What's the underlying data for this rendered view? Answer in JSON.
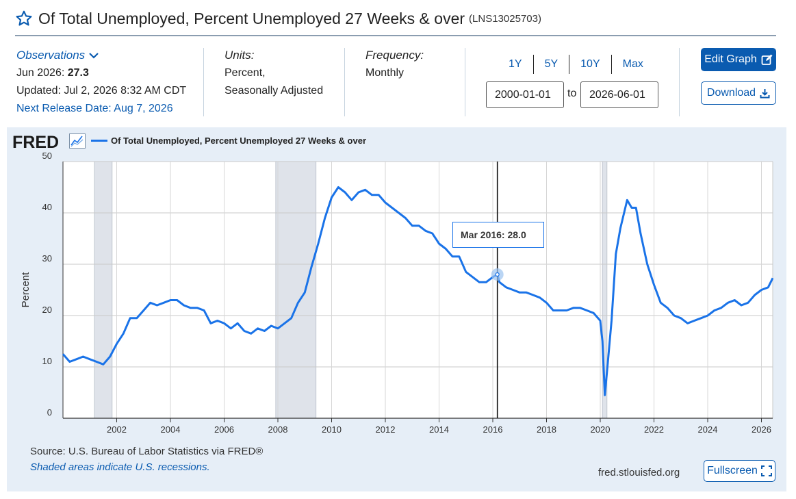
{
  "header": {
    "title": "Of Total Unemployed, Percent Unemployed 27 Weeks & over",
    "series_id": "(LNS13025703)",
    "star_icon": "star-outline-icon"
  },
  "observations": {
    "label": "Observations",
    "period": "Jun 2026:",
    "value": "27.3",
    "updated": "Updated: Jul 2, 2026 8:32 AM CDT",
    "next_release": "Next Release Date: Aug 7, 2026"
  },
  "units": {
    "label": "Units:",
    "line1": "Percent,",
    "line2": "Seasonally Adjusted"
  },
  "frequency": {
    "label": "Frequency:",
    "value": "Monthly"
  },
  "range": {
    "buttons": [
      "1Y",
      "5Y",
      "10Y",
      "Max"
    ],
    "start": "2000-01-01",
    "to": "to",
    "end": "2026-06-01"
  },
  "actions": {
    "edit": "Edit Graph",
    "download": "Download",
    "fullscreen": "Fullscreen"
  },
  "graph": {
    "logo": "FRED",
    "legend": "Of Total Unemployed, Percent Unemployed 27 Weeks & over",
    "line_color": "#1a73e8",
    "source": "Source: U.S. Bureau of Labor Statistics via FRED®",
    "recession_note": "Shaded areas indicate U.S. recessions.",
    "url": "fred.stlouisfed.org",
    "tooltip_date": "Mar 2016:",
    "tooltip_value": "28.0"
  },
  "chart_data": {
    "type": "line",
    "title": "",
    "xlabel": "",
    "ylabel": "Percent",
    "xlim": [
      2000.0,
      2026.42
    ],
    "ylim": [
      0,
      50
    ],
    "yticks": [
      0,
      10,
      20,
      30,
      40,
      50
    ],
    "xticks": [
      2002,
      2004,
      2006,
      2008,
      2010,
      2012,
      2014,
      2016,
      2018,
      2020,
      2022,
      2024,
      2026
    ],
    "grid": true,
    "recessions": [
      [
        2001.17,
        2001.83
      ],
      [
        2007.92,
        2009.42
      ],
      [
        2020.08,
        2020.25
      ]
    ],
    "hover": {
      "x": 2016.17,
      "y": 28.0
    },
    "series": [
      {
        "name": "Of Total Unemployed, Percent Unemployed 27 Weeks & over",
        "x": [
          2000.0,
          2000.25,
          2000.5,
          2000.75,
          2001.0,
          2001.25,
          2001.5,
          2001.75,
          2002.0,
          2002.25,
          2002.5,
          2002.75,
          2003.0,
          2003.25,
          2003.5,
          2003.75,
          2004.0,
          2004.25,
          2004.5,
          2004.75,
          2005.0,
          2005.25,
          2005.5,
          2005.75,
          2006.0,
          2006.25,
          2006.5,
          2006.75,
          2007.0,
          2007.25,
          2007.5,
          2007.75,
          2008.0,
          2008.25,
          2008.5,
          2008.75,
          2009.0,
          2009.25,
          2009.5,
          2009.75,
          2010.0,
          2010.25,
          2010.5,
          2010.75,
          2011.0,
          2011.25,
          2011.5,
          2011.75,
          2012.0,
          2012.25,
          2012.5,
          2012.75,
          2013.0,
          2013.25,
          2013.5,
          2013.75,
          2014.0,
          2014.25,
          2014.5,
          2014.75,
          2015.0,
          2015.25,
          2015.5,
          2015.75,
          2016.0,
          2016.17,
          2016.25,
          2016.5,
          2016.75,
          2017.0,
          2017.25,
          2017.5,
          2017.75,
          2018.0,
          2018.25,
          2018.5,
          2018.75,
          2019.0,
          2019.25,
          2019.5,
          2019.75,
          2020.0,
          2020.08,
          2020.17,
          2020.25,
          2020.42,
          2020.58,
          2020.75,
          2021.0,
          2021.17,
          2021.33,
          2021.5,
          2021.75,
          2022.0,
          2022.25,
          2022.5,
          2022.75,
          2023.0,
          2023.25,
          2023.5,
          2023.75,
          2024.0,
          2024.25,
          2024.5,
          2024.75,
          2025.0,
          2025.25,
          2025.5,
          2025.75,
          2026.0,
          2026.25,
          2026.42
        ],
        "y": [
          12.5,
          11.0,
          11.5,
          12.0,
          11.5,
          11.0,
          10.5,
          12.0,
          14.5,
          16.5,
          19.5,
          19.5,
          21.0,
          22.5,
          22.0,
          22.5,
          23.0,
          23.0,
          22.0,
          21.5,
          21.5,
          21.0,
          18.5,
          19.0,
          18.5,
          17.5,
          18.5,
          17.0,
          16.5,
          17.5,
          17.0,
          18.0,
          17.5,
          18.5,
          19.5,
          22.5,
          24.5,
          29.5,
          34.0,
          39.0,
          43.0,
          45.0,
          44.0,
          42.5,
          44.0,
          44.5,
          43.5,
          43.5,
          42.0,
          41.0,
          40.0,
          39.0,
          37.5,
          37.5,
          36.5,
          36.0,
          34.0,
          33.0,
          31.5,
          31.5,
          28.5,
          27.5,
          26.5,
          26.5,
          27.5,
          28.0,
          26.5,
          25.5,
          25.0,
          24.5,
          24.5,
          24.0,
          23.5,
          22.5,
          21.0,
          21.0,
          21.0,
          21.5,
          21.5,
          21.0,
          20.5,
          19.0,
          15.0,
          4.5,
          9.0,
          19.0,
          32.0,
          37.0,
          42.5,
          41.0,
          41.0,
          36.0,
          30.0,
          26.0,
          22.5,
          21.5,
          20.0,
          19.5,
          18.5,
          19.0,
          19.5,
          20.0,
          21.0,
          21.5,
          22.5,
          23.0,
          22.0,
          22.5,
          24.0,
          25.0,
          25.5,
          27.3
        ]
      }
    ]
  }
}
